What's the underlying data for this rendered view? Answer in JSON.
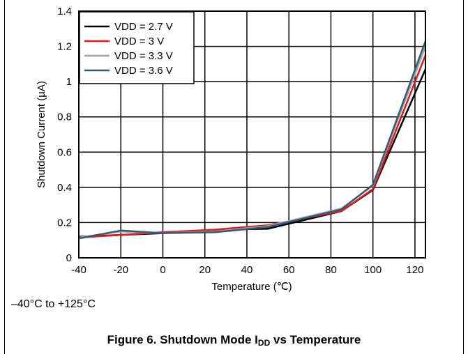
{
  "chart_data": {
    "type": "line",
    "xlabel": "Temperature (℃)",
    "ylabel": "Shutdown Current (µA)",
    "xlim": [
      -40,
      125
    ],
    "ylim": [
      0,
      1.4
    ],
    "x_ticks": [
      -40,
      -20,
      0,
      20,
      40,
      60,
      80,
      100,
      120
    ],
    "x_tick_labels": [
      "-40",
      "-20",
      "0",
      "20",
      "40",
      "60",
      "80",
      "100",
      "120"
    ],
    "y_ticks": [
      0,
      0.2,
      0.4,
      0.6,
      0.8,
      1.0,
      1.2,
      1.4
    ],
    "y_tick_labels": [
      "0",
      "0.2",
      "0.4",
      "0.6",
      "0.8",
      "1",
      "1.2",
      "1.4"
    ],
    "grid": true,
    "legend_position": "top-left",
    "figure_id": "D007",
    "series": [
      {
        "name": "VDD = 2.7 V",
        "color": "#000000",
        "x": [
          -40,
          -20,
          0,
          25,
          50,
          85,
          100,
          125
        ],
        "y": [
          0.12,
          0.13,
          0.14,
          0.16,
          0.165,
          0.265,
          0.385,
          1.07
        ]
      },
      {
        "name": "VDD = 3 V",
        "color": "#e8161b",
        "x": [
          -40,
          -20,
          0,
          25,
          50,
          85,
          100,
          125
        ],
        "y": [
          0.115,
          0.13,
          0.145,
          0.16,
          0.185,
          0.265,
          0.39,
          1.15
        ]
      },
      {
        "name": "VDD = 3.3 V",
        "color": "#a6a6a6",
        "x": [
          -40,
          -20,
          0,
          25,
          50,
          85,
          100,
          125
        ],
        "y": [
          0.115,
          0.15,
          0.14,
          0.15,
          0.18,
          0.28,
          0.41,
          1.2
        ]
      },
      {
        "name": "VDD = 3.6 V",
        "color": "#2f5a73",
        "x": [
          -40,
          -20,
          0,
          25,
          50,
          85,
          100,
          125
        ],
        "y": [
          0.11,
          0.155,
          0.14,
          0.145,
          0.175,
          0.275,
          0.415,
          1.23
        ]
      }
    ]
  },
  "range_note": "–40°C to +125°C",
  "caption": {
    "prefix": "Figure 6. Shutdown Mode I",
    "subscript": "DD",
    "suffix": " vs Temperature"
  }
}
